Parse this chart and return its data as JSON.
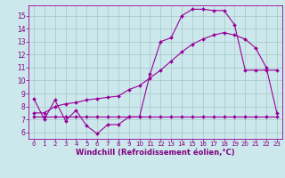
{
  "bg_color": "#cce8ec",
  "grid_color": "#aacccc",
  "line_color": "#990099",
  "marker_color": "#990099",
  "xlabel": "Windchill (Refroidissement éolien,°C)",
  "xlabel_color": "#800080",
  "tick_color": "#800080",
  "xlim": [
    -0.5,
    23.5
  ],
  "ylim": [
    5.5,
    15.8
  ],
  "yticks": [
    6,
    7,
    8,
    9,
    10,
    11,
    12,
    13,
    14,
    15
  ],
  "xticks": [
    0,
    1,
    2,
    3,
    4,
    5,
    6,
    7,
    8,
    9,
    10,
    11,
    12,
    13,
    14,
    15,
    16,
    17,
    18,
    19,
    20,
    21,
    22,
    23
  ],
  "line1_x": [
    0,
    1,
    2,
    3,
    4,
    5,
    6,
    7,
    8,
    9,
    10,
    11,
    12,
    13,
    14,
    15,
    16,
    17,
    18,
    19,
    20,
    21,
    22,
    23
  ],
  "line1_y": [
    8.6,
    7.0,
    8.5,
    6.9,
    7.7,
    6.5,
    5.9,
    6.6,
    6.6,
    7.2,
    7.2,
    10.5,
    13.0,
    13.3,
    15.0,
    15.5,
    15.5,
    15.4,
    15.4,
    14.3,
    10.8,
    10.8,
    10.8,
    10.8
  ],
  "line2_x": [
    0,
    1,
    2,
    3,
    4,
    5,
    6,
    7,
    8,
    9,
    10,
    11,
    12,
    13,
    14,
    15,
    16,
    17,
    18,
    19,
    20,
    21,
    22,
    23
  ],
  "line2_y": [
    7.5,
    7.5,
    8.0,
    8.2,
    8.3,
    8.5,
    8.6,
    8.7,
    8.8,
    9.3,
    9.6,
    10.2,
    10.8,
    11.5,
    12.2,
    12.8,
    13.2,
    13.5,
    13.7,
    13.5,
    13.2,
    12.5,
    11.0,
    7.5
  ],
  "line3_x": [
    0,
    1,
    2,
    3,
    4,
    5,
    6,
    7,
    8,
    9,
    10,
    11,
    12,
    13,
    14,
    15,
    16,
    17,
    18,
    19,
    20,
    21,
    22,
    23
  ],
  "line3_y": [
    7.2,
    7.2,
    7.2,
    7.2,
    7.2,
    7.2,
    7.2,
    7.2,
    7.2,
    7.2,
    7.2,
    7.2,
    7.2,
    7.2,
    7.2,
    7.2,
    7.2,
    7.2,
    7.2,
    7.2,
    7.2,
    7.2,
    7.2,
    7.2
  ],
  "tick_fontsize": 5,
  "xlabel_fontsize": 6,
  "marker_size": 2,
  "line_width": 0.8
}
